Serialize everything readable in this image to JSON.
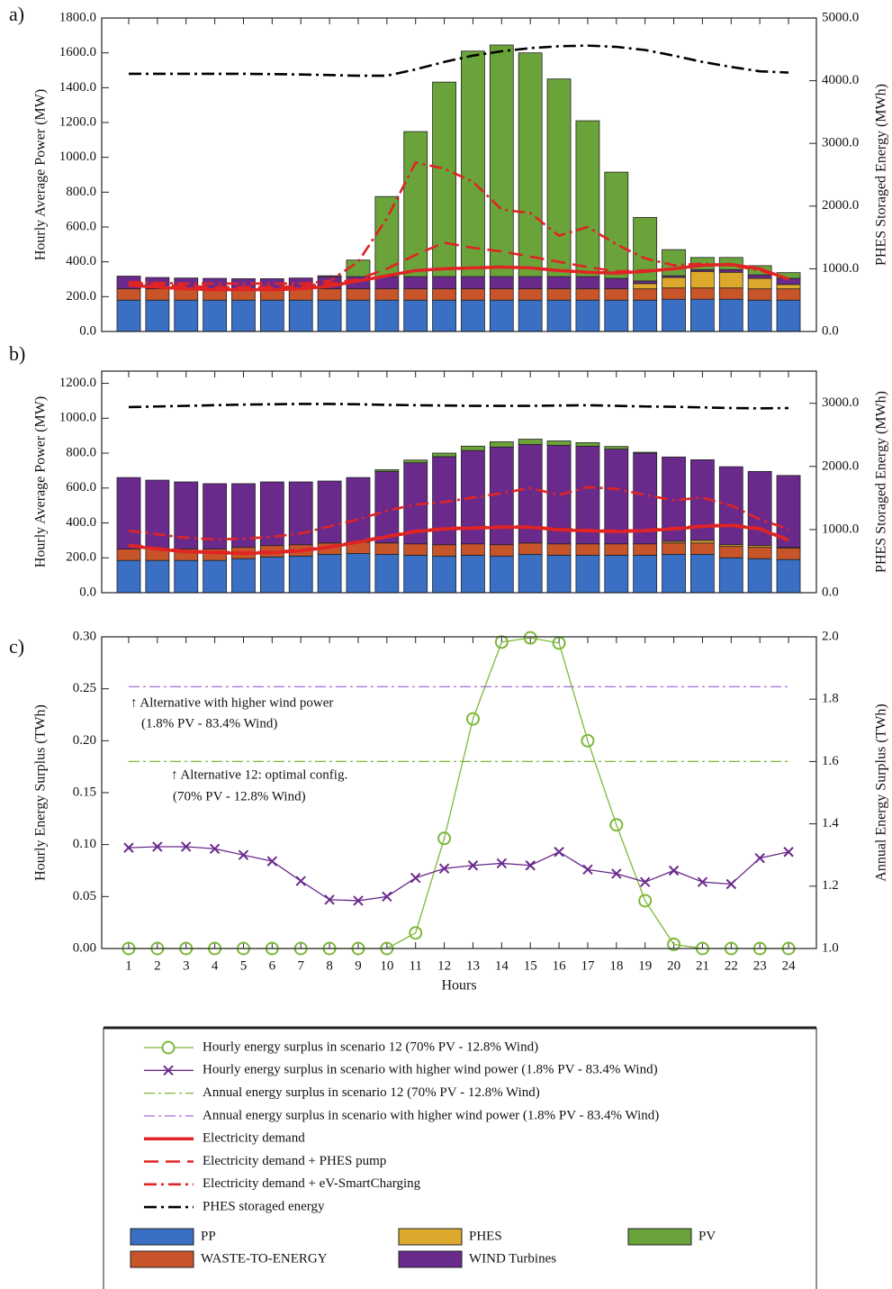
{
  "chart_data": [
    {
      "type": "bar",
      "label": "a)",
      "ylabel": "Hourly Average Power (MW)",
      "y2label": "PHES Storaged Energy (MWh)",
      "categories": [
        null,
        null,
        null,
        null,
        null,
        null,
        null,
        null,
        null,
        null,
        null,
        null,
        null,
        null,
        null,
        null,
        null,
        null,
        null,
        null,
        null,
        null,
        null,
        null
      ],
      "ylim": [
        0,
        1800
      ],
      "yticks": [
        {
          "value": 0,
          "label": "0.0"
        },
        {
          "value": 200,
          "label": "200.0"
        },
        {
          "value": 400,
          "label": "400.0"
        },
        {
          "value": 600,
          "label": "600.0"
        },
        {
          "value": 800,
          "label": "800.0"
        },
        {
          "value": 1000,
          "label": "1000.0"
        },
        {
          "value": 1200,
          "label": "1200.0"
        },
        {
          "value": 1400,
          "label": "1400.0"
        },
        {
          "value": 1600,
          "label": "1600.0"
        },
        {
          "value": 1800,
          "label": "1800.0"
        }
      ],
      "y2lim": [
        0,
        5000
      ],
      "y2ticks": [
        {
          "value": 0,
          "label": "0.0"
        },
        {
          "value": 1000,
          "label": "1000.0"
        },
        {
          "value": 2000,
          "label": "2000.0"
        },
        {
          "value": 3000,
          "label": "3000.0"
        },
        {
          "value": 4000,
          "label": "4000.0"
        },
        {
          "value": 5000,
          "label": "5000.0"
        }
      ],
      "series": [
        {
          "name": "PP",
          "type": "bar",
          "color": "#3a6fc4",
          "values": [
            180,
            180,
            180,
            180,
            180,
            180,
            180,
            180,
            180,
            180,
            180,
            180,
            180,
            180,
            180,
            180,
            180,
            180,
            180,
            185,
            185,
            185,
            180,
            180
          ]
        },
        {
          "name": "WASTE-TO-ENERGY",
          "type": "bar",
          "color": "#c8542a",
          "values": [
            65,
            65,
            65,
            65,
            65,
            65,
            65,
            65,
            65,
            65,
            65,
            65,
            65,
            65,
            65,
            65,
            65,
            65,
            65,
            65,
            65,
            65,
            65,
            65
          ]
        },
        {
          "name": "PHES",
          "type": "bar",
          "color": "#dca92c",
          "values": [
            0,
            0,
            0,
            0,
            0,
            0,
            0,
            0,
            0,
            0,
            0,
            0,
            0,
            0,
            0,
            0,
            0,
            0,
            30,
            60,
            95,
            90,
            60,
            25
          ]
        },
        {
          "name": "WIND Turbines",
          "type": "bar",
          "color": "#6a2a8c",
          "values": [
            73,
            65,
            62,
            60,
            58,
            58,
            62,
            70,
            70,
            70,
            70,
            70,
            70,
            70,
            70,
            70,
            70,
            60,
            15,
            10,
            10,
            15,
            20,
            35
          ]
        },
        {
          "name": "PV",
          "type": "bar",
          "color": "#6aa33a",
          "values": [
            0,
            0,
            0,
            0,
            0,
            0,
            0,
            5,
            95,
            460,
            833,
            1117,
            1295,
            1330,
            1285,
            1135,
            895,
            610,
            365,
            150,
            70,
            70,
            53,
            33
          ]
        },
        {
          "name": "Electricity demand",
          "type": "line",
          "dash": "solid",
          "color": "#e02424",
          "values": [
            265,
            255,
            245,
            240,
            240,
            240,
            245,
            260,
            290,
            320,
            350,
            360,
            365,
            370,
            365,
            350,
            340,
            335,
            345,
            360,
            380,
            385,
            360,
            300
          ]
        },
        {
          "name": "Electricity demand + PHES pump",
          "type": "line",
          "dash": "dashed",
          "color": "#e02424",
          "values": [
            280,
            270,
            260,
            255,
            255,
            255,
            260,
            275,
            300,
            360,
            440,
            510,
            480,
            460,
            430,
            400,
            370,
            345,
            350,
            360,
            380,
            385,
            360,
            300
          ]
        },
        {
          "name": "Electricity demand + eV-SmartCharging",
          "type": "line",
          "dash": "dashdot",
          "color": "#e02424",
          "values": [
            285,
            280,
            275,
            275,
            275,
            275,
            275,
            290,
            400,
            650,
            970,
            935,
            860,
            700,
            680,
            550,
            600,
            500,
            420,
            380,
            390,
            380,
            350,
            300
          ]
        },
        {
          "name": "PHES storaged energy",
          "type": "line",
          "dash": "dashdot",
          "color": "#000000",
          "axis": "y2",
          "values": [
            4110,
            4110,
            4110,
            4110,
            4110,
            4105,
            4100,
            4090,
            4080,
            4080,
            4180,
            4300,
            4400,
            4470,
            4520,
            4550,
            4560,
            4540,
            4490,
            4400,
            4300,
            4220,
            4150,
            4130
          ]
        }
      ]
    },
    {
      "type": "bar",
      "label": "b)",
      "ylabel": "Hourly Average Power (MW)",
      "y2label": "PHES Storaged Energy (MWh)",
      "categories": [
        null,
        null,
        null,
        null,
        null,
        null,
        null,
        null,
        null,
        null,
        null,
        null,
        null,
        null,
        null,
        null,
        null,
        null,
        null,
        null,
        null,
        null,
        null,
        null
      ],
      "ylim": [
        0,
        1270
      ],
      "yticks": [
        {
          "value": 0,
          "label": "0.0"
        },
        {
          "value": 200,
          "label": "200.0"
        },
        {
          "value": 400,
          "label": "400.0"
        },
        {
          "value": 600,
          "label": "600.0"
        },
        {
          "value": 800,
          "label": "800.0"
        },
        {
          "value": 1000,
          "label": "1000.0"
        },
        {
          "value": 1200,
          "label": "1200.0"
        }
      ],
      "y2lim": [
        0,
        3510
      ],
      "y2ticks": [
        {
          "value": 0,
          "label": "0.0"
        },
        {
          "value": 1000,
          "label": "1000.0"
        },
        {
          "value": 2000,
          "label": "2000.0"
        },
        {
          "value": 3000,
          "label": "3000.0"
        }
      ],
      "series": [
        {
          "type": "bar",
          "color": "#3a6fc4",
          "values": [
            185,
            185,
            185,
            185,
            195,
            205,
            210,
            220,
            225,
            220,
            215,
            210,
            215,
            210,
            220,
            215,
            215,
            215,
            215,
            220,
            220,
            200,
            195,
            190
          ]
        },
        {
          "type": "bar",
          "color": "#c8542a",
          "values": [
            65,
            65,
            65,
            65,
            65,
            65,
            65,
            65,
            65,
            65,
            65,
            65,
            65,
            65,
            65,
            65,
            65,
            65,
            65,
            65,
            65,
            65,
            65,
            65
          ]
        },
        {
          "type": "bar",
          "color": "#dca92c",
          "values": [
            0,
            0,
            0,
            0,
            0,
            0,
            0,
            0,
            0,
            0,
            0,
            0,
            0,
            0,
            0,
            0,
            0,
            0,
            0,
            10,
            15,
            10,
            10,
            5
          ]
        },
        {
          "type": "bar",
          "color": "#6a2a8c",
          "values": [
            410,
            395,
            385,
            375,
            365,
            365,
            360,
            355,
            370,
            410,
            465,
            505,
            535,
            560,
            565,
            565,
            560,
            543,
            520,
            483,
            462,
            447,
            425,
            412
          ]
        },
        {
          "type": "bar",
          "color": "#6aa33a",
          "values": [
            0,
            0,
            0,
            0,
            0,
            0,
            0,
            0,
            0,
            10,
            15,
            20,
            25,
            30,
            30,
            25,
            20,
            15,
            5,
            0,
            0,
            0,
            0,
            0
          ]
        },
        {
          "type": "line",
          "dash": "solid",
          "color": "#e02424",
          "values": [
            270,
            250,
            235,
            230,
            225,
            230,
            240,
            260,
            290,
            320,
            350,
            365,
            370,
            375,
            375,
            360,
            355,
            350,
            355,
            365,
            380,
            385,
            365,
            300
          ]
        },
        {
          "type": "line",
          "dash": "dashed",
          "color": "#e02424",
          "values": [
            275,
            255,
            240,
            235,
            230,
            235,
            245,
            265,
            295,
            325,
            355,
            370,
            375,
            380,
            380,
            365,
            360,
            355,
            360,
            370,
            385,
            390,
            370,
            305
          ]
        },
        {
          "type": "line",
          "dash": "dashdot",
          "color": "#e02424",
          "values": [
            355,
            335,
            315,
            305,
            310,
            320,
            340,
            380,
            420,
            470,
            505,
            520,
            545,
            570,
            600,
            560,
            605,
            595,
            560,
            530,
            545,
            500,
            420,
            365
          ]
        },
        {
          "type": "line",
          "dash": "dashdot",
          "color": "#000000",
          "axis": "y2",
          "values": [
            2940,
            2950,
            2960,
            2970,
            2980,
            2985,
            2990,
            2990,
            2985,
            2975,
            2970,
            2965,
            2960,
            2960,
            2960,
            2965,
            2970,
            2960,
            2950,
            2945,
            2935,
            2925,
            2920,
            2925
          ]
        }
      ]
    },
    {
      "type": "line",
      "label": "c)",
      "xlabel": "Hours",
      "ylabel": "Hourly Energy Surplus (TWh)",
      "y2label": "Annual Energy Surplus (TWh)",
      "x": [
        1,
        2,
        3,
        4,
        5,
        6,
        7,
        8,
        9,
        10,
        11,
        12,
        13,
        14,
        15,
        16,
        17,
        18,
        19,
        20,
        21,
        22,
        23,
        24
      ],
      "xlim": [
        0.06,
        24.97
      ],
      "xticks": [
        1,
        2,
        3,
        4,
        5,
        6,
        7,
        8,
        9,
        10,
        11,
        12,
        13,
        14,
        15,
        16,
        17,
        18,
        19,
        20,
        21,
        22,
        23,
        24
      ],
      "ylim": [
        0,
        0.3
      ],
      "yticks": [
        {
          "value": 0,
          "label": "0.00"
        },
        0.05,
        {
          "value": 0.1,
          "label": "0.10"
        },
        0.15,
        {
          "value": 0.2,
          "label": "0.20"
        },
        0.25,
        {
          "value": 0.3,
          "label": "0.30"
        }
      ],
      "y2lim": [
        1.0,
        2.0
      ],
      "y2ticks": [
        {
          "value": 1,
          "label": "1.0"
        },
        1.2,
        1.4,
        1.6,
        1.8,
        {
          "value": 2,
          "label": "2.0"
        }
      ],
      "series": [
        {
          "name": "Hourly energy surplus in scenario 12 (70% PV - 12.8% Wind)",
          "type": "line",
          "dash": "solid",
          "marker": "circle",
          "color": "#7db83a",
          "values": [
            0,
            0,
            0,
            0,
            0,
            0,
            0,
            0,
            0,
            0,
            0.015,
            0.106,
            0.221,
            0.295,
            0.299,
            0.294,
            0.2,
            0.119,
            0.046,
            0.004,
            0,
            0,
            0,
            0
          ]
        },
        {
          "name": "Hourly energy surplus in scenario with higher wind power (1.8% PV - 83.4% Wind)",
          "type": "line",
          "dash": "solid",
          "marker": "x",
          "color": "#6a2a8c",
          "values": [
            0.097,
            0.098,
            0.098,
            0.096,
            0.09,
            0.084,
            0.065,
            0.047,
            0.046,
            0.05,
            0.068,
            0.077,
            0.08,
            0.082,
            0.08,
            0.093,
            0.076,
            0.072,
            0.064,
            0.075,
            0.064,
            0.062,
            0.087,
            0.093
          ]
        },
        {
          "name": "Annual energy surplus in scenario 12 (70% PV - 12.8% Wind)",
          "type": "hline",
          "dash": "dashdot",
          "color": "#7db83a",
          "axis": "y2",
          "value": 1.6
        },
        {
          "name": "Annual energy surplus in scenario with higher wind power (1.8% PV - 83.4% Wind)",
          "type": "hline",
          "dash": "dashdot",
          "color": "#a070d8",
          "axis": "y2",
          "value": 1.84
        }
      ],
      "annotations": [
        "↑ Alternative with higher wind power",
        "(1.8% PV - 83.4% Wind)",
        "↑ Alternative 12: optimal config.",
        "(70% PV - 12.8% Wind)"
      ]
    }
  ]
}
